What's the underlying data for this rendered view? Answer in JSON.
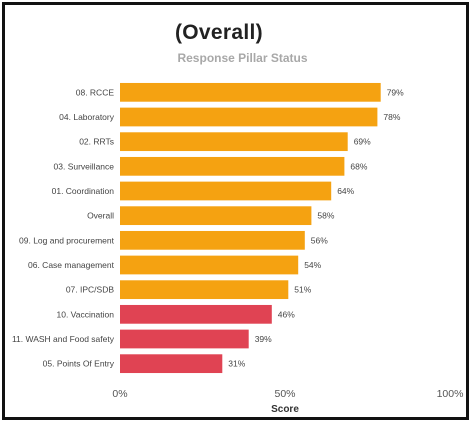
{
  "chart_data": {
    "type": "bar",
    "orientation": "horizontal",
    "title": "(Overall)",
    "subtitle": "Response Pillar Status",
    "xlabel": "Score",
    "ylabel": "",
    "xlim": [
      0,
      100
    ],
    "x_ticks": [
      "0%",
      "50%",
      "100%"
    ],
    "x_tick_values": [
      0,
      50,
      100
    ],
    "grid": false,
    "value_suffix": "%",
    "colors": {
      "high": "#F5A211",
      "low": "#E04353"
    },
    "categories": [
      "08. RCCE",
      "04. Laboratory",
      "02. RRTs",
      "03. Surveillance",
      "01. Coordination",
      "Overall",
      "09. Log and procurement",
      "06. Case management",
      "07. IPC/SDB",
      "10. Vaccination",
      "11. WASH and Food safety",
      "05. Points Of Entry"
    ],
    "values": [
      79,
      78,
      69,
      68,
      64,
      58,
      56,
      54,
      51,
      46,
      39,
      31
    ],
    "bar_colors": [
      "high",
      "high",
      "high",
      "high",
      "high",
      "high",
      "high",
      "high",
      "high",
      "low",
      "low",
      "low"
    ]
  }
}
